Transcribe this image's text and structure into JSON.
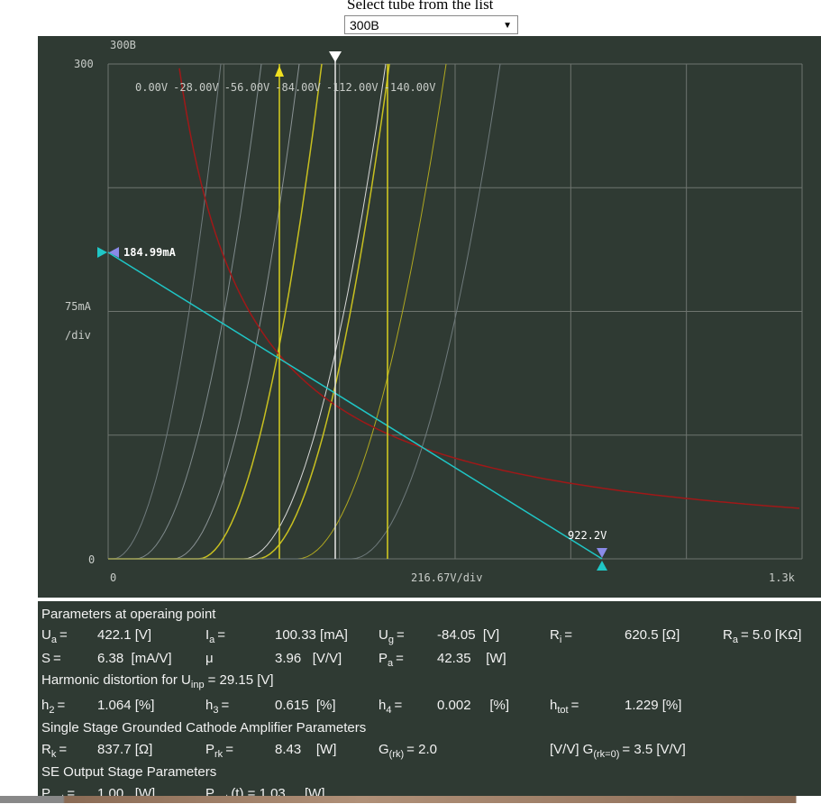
{
  "header": {
    "title": "Select tube from the list",
    "selected": "300B"
  },
  "plot": {
    "tube": "300B",
    "y_top": "300",
    "y_unit": "75mA",
    "y_div": "/div",
    "y_zero": "0",
    "x_zero": "0",
    "x_div": "216.67V/div",
    "x_end": "1.3k",
    "grid_labels": [
      "0.00V",
      "-28.00V",
      "-56.00V",
      "-84.00V",
      "-112.00V",
      "-140.00V"
    ],
    "op_current": "184.99mA",
    "op_voltage": "922.2V"
  },
  "params": {
    "heading": "Parameters at operaing point",
    "row1": [
      {
        "sym": "U",
        "sub": "a",
        "post": "=",
        "value": "422.1 [V]"
      },
      {
        "sym": "I",
        "sub": "a",
        "post": "=",
        "value": "100.33 [mA]"
      },
      {
        "sym": "U",
        "sub": "g",
        "post": "=",
        "value": "-84.05  [V]"
      },
      {
        "sym": "R",
        "sub": "i",
        "post": "=",
        "value": "620.5 [Ω]"
      },
      {
        "sym": "R",
        "sub": "a",
        "post": "=  5.0 [KΩ]"
      }
    ],
    "row2": [
      {
        "sym": "S",
        "post": "=",
        "value": "6.38  [mA/V]"
      },
      {
        "sym": "μ",
        "value": "3.96   [V/V]"
      },
      {
        "sym": "P",
        "sub": "a",
        "post": "=",
        "value": "42.35    [W]"
      }
    ],
    "harmonic": {
      "text": "Harmonic distortion for U",
      "sub": "inp",
      "rest": "= 29.15 [V]"
    },
    "row3": [
      {
        "sym": "h",
        "sub": "2",
        "post": "=",
        "value": "1.064 [%]"
      },
      {
        "sym": "h",
        "sub": "3",
        "post": "=",
        "value": "0.615  [%]"
      },
      {
        "sym": "h",
        "sub": "4",
        "post": "=",
        "value": "0.002     [%]"
      },
      {
        "sym": "h",
        "sub": "tot",
        "post": "=",
        "value": "1.229 [%]"
      }
    ],
    "heading2": "Single Stage Grounded Cathode Amplifier Parameters",
    "row4": [
      {
        "sym": "R",
        "sub": "k",
        "post": "=",
        "value": "837.7 [Ω]"
      },
      {
        "sym": "P",
        "sub": "rk",
        "post": "=",
        "value": "8.43    [W]"
      },
      {
        "sym": "G",
        "sub": "(rk)",
        "post": "=  2.0"
      },
      {
        "sym": "[V/V]  G",
        "sub": "(rk=0)",
        "post": "=  3.5    [V/V]"
      }
    ],
    "heading3": "SE Output Stage Parameters",
    "row5": [
      {
        "sym": "P",
        "sub": "out",
        "post": "=",
        "value": "1.00   [W]"
      },
      {
        "sym": "P",
        "sub": "out",
        "post": "(t) =  1.03",
        "value": "[W]"
      }
    ]
  }
}
